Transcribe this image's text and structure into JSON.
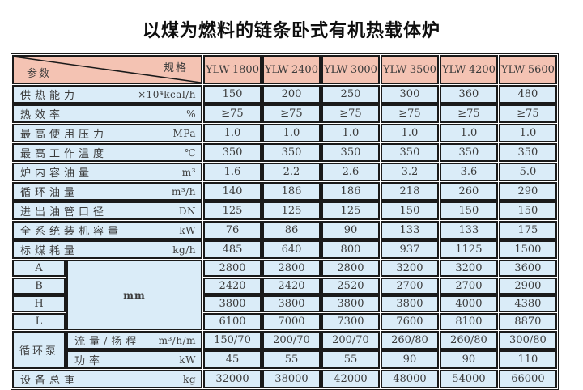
{
  "page": {
    "title": "以煤为燃料的链条卧式有机热载体炉"
  },
  "colors": {
    "header_bg": "#f4c3b3",
    "cell_bg": "#daecf8",
    "border": "#1a1a1a",
    "text": "#3b3b3b",
    "title_text": "#0e0e0e"
  },
  "table": {
    "corner": {
      "spec_label": "规格",
      "param_label": "参数"
    },
    "models": [
      "YLW-1800",
      "YLW-2400",
      "YLW-3000",
      "YLW-3500",
      "YLW-4200",
      "YLW-5600"
    ],
    "dim_group_unit": "mm",
    "pump_group_label": "循环泵",
    "rows": [
      {
        "kind": "param",
        "label": "供热能力",
        "unit": "×10⁴kcal/h",
        "values": [
          "150",
          "200",
          "250",
          "300",
          "360",
          "480"
        ]
      },
      {
        "kind": "param",
        "label": "热效率",
        "unit": "%",
        "values": [
          "≥75",
          "≥75",
          "≥75",
          "≥75",
          "≥75",
          "≥75"
        ]
      },
      {
        "kind": "param",
        "label": "最高使用压力",
        "unit": "MPa",
        "values": [
          "1.0",
          "1.0",
          "1.0",
          "1.0",
          "1.0",
          "1.0"
        ]
      },
      {
        "kind": "param",
        "label": "最高工作温度",
        "unit": "℃",
        "values": [
          "350",
          "350",
          "350",
          "350",
          "350",
          "350"
        ]
      },
      {
        "kind": "param",
        "label": "炉内容油量",
        "unit": "m³",
        "values": [
          "1.6",
          "2.2",
          "2.6",
          "3.2",
          "3.6",
          "5.0"
        ]
      },
      {
        "kind": "param",
        "label": "循环油量",
        "unit": "m³/h",
        "values": [
          "140",
          "186",
          "186",
          "218",
          "260",
          "290"
        ]
      },
      {
        "kind": "param",
        "label": "进出油管口径",
        "unit": "DN",
        "values": [
          "125",
          "125",
          "125",
          "150",
          "150",
          "150"
        ]
      },
      {
        "kind": "param",
        "label": "全系统装机容量",
        "unit": "kW",
        "values": [
          "76",
          "86",
          "90",
          "133",
          "133",
          "175"
        ]
      },
      {
        "kind": "param",
        "label": "标煤耗量",
        "unit": "kg/h",
        "values": [
          "485",
          "640",
          "800",
          "937",
          "1125",
          "1500"
        ]
      },
      {
        "kind": "dim",
        "label": "A",
        "values": [
          "2800",
          "2800",
          "2800",
          "3200",
          "3200",
          "3600"
        ]
      },
      {
        "kind": "dim",
        "label": "B",
        "values": [
          "2420",
          "2420",
          "2520",
          "2700",
          "2700",
          "2900"
        ]
      },
      {
        "kind": "dim",
        "label": "H",
        "values": [
          "3800",
          "3800",
          "3800",
          "3800",
          "4000",
          "4380"
        ]
      },
      {
        "kind": "dim",
        "label": "L",
        "values": [
          "6100",
          "7000",
          "7300",
          "7600",
          "8100",
          "8870"
        ]
      },
      {
        "kind": "pump",
        "label": "流量/扬程",
        "unit": "m³/h/m",
        "values": [
          "150/70",
          "200/70",
          "200/70",
          "260/80",
          "260/80",
          "300/80"
        ]
      },
      {
        "kind": "pump",
        "label": "功率",
        "unit": "kW",
        "values": [
          "45",
          "55",
          "55",
          "90",
          "90",
          "110"
        ]
      },
      {
        "kind": "total",
        "label": "设备总重",
        "unit": "kg",
        "values": [
          "32000",
          "38000",
          "42000",
          "48000",
          "54000",
          "66000"
        ]
      }
    ]
  }
}
